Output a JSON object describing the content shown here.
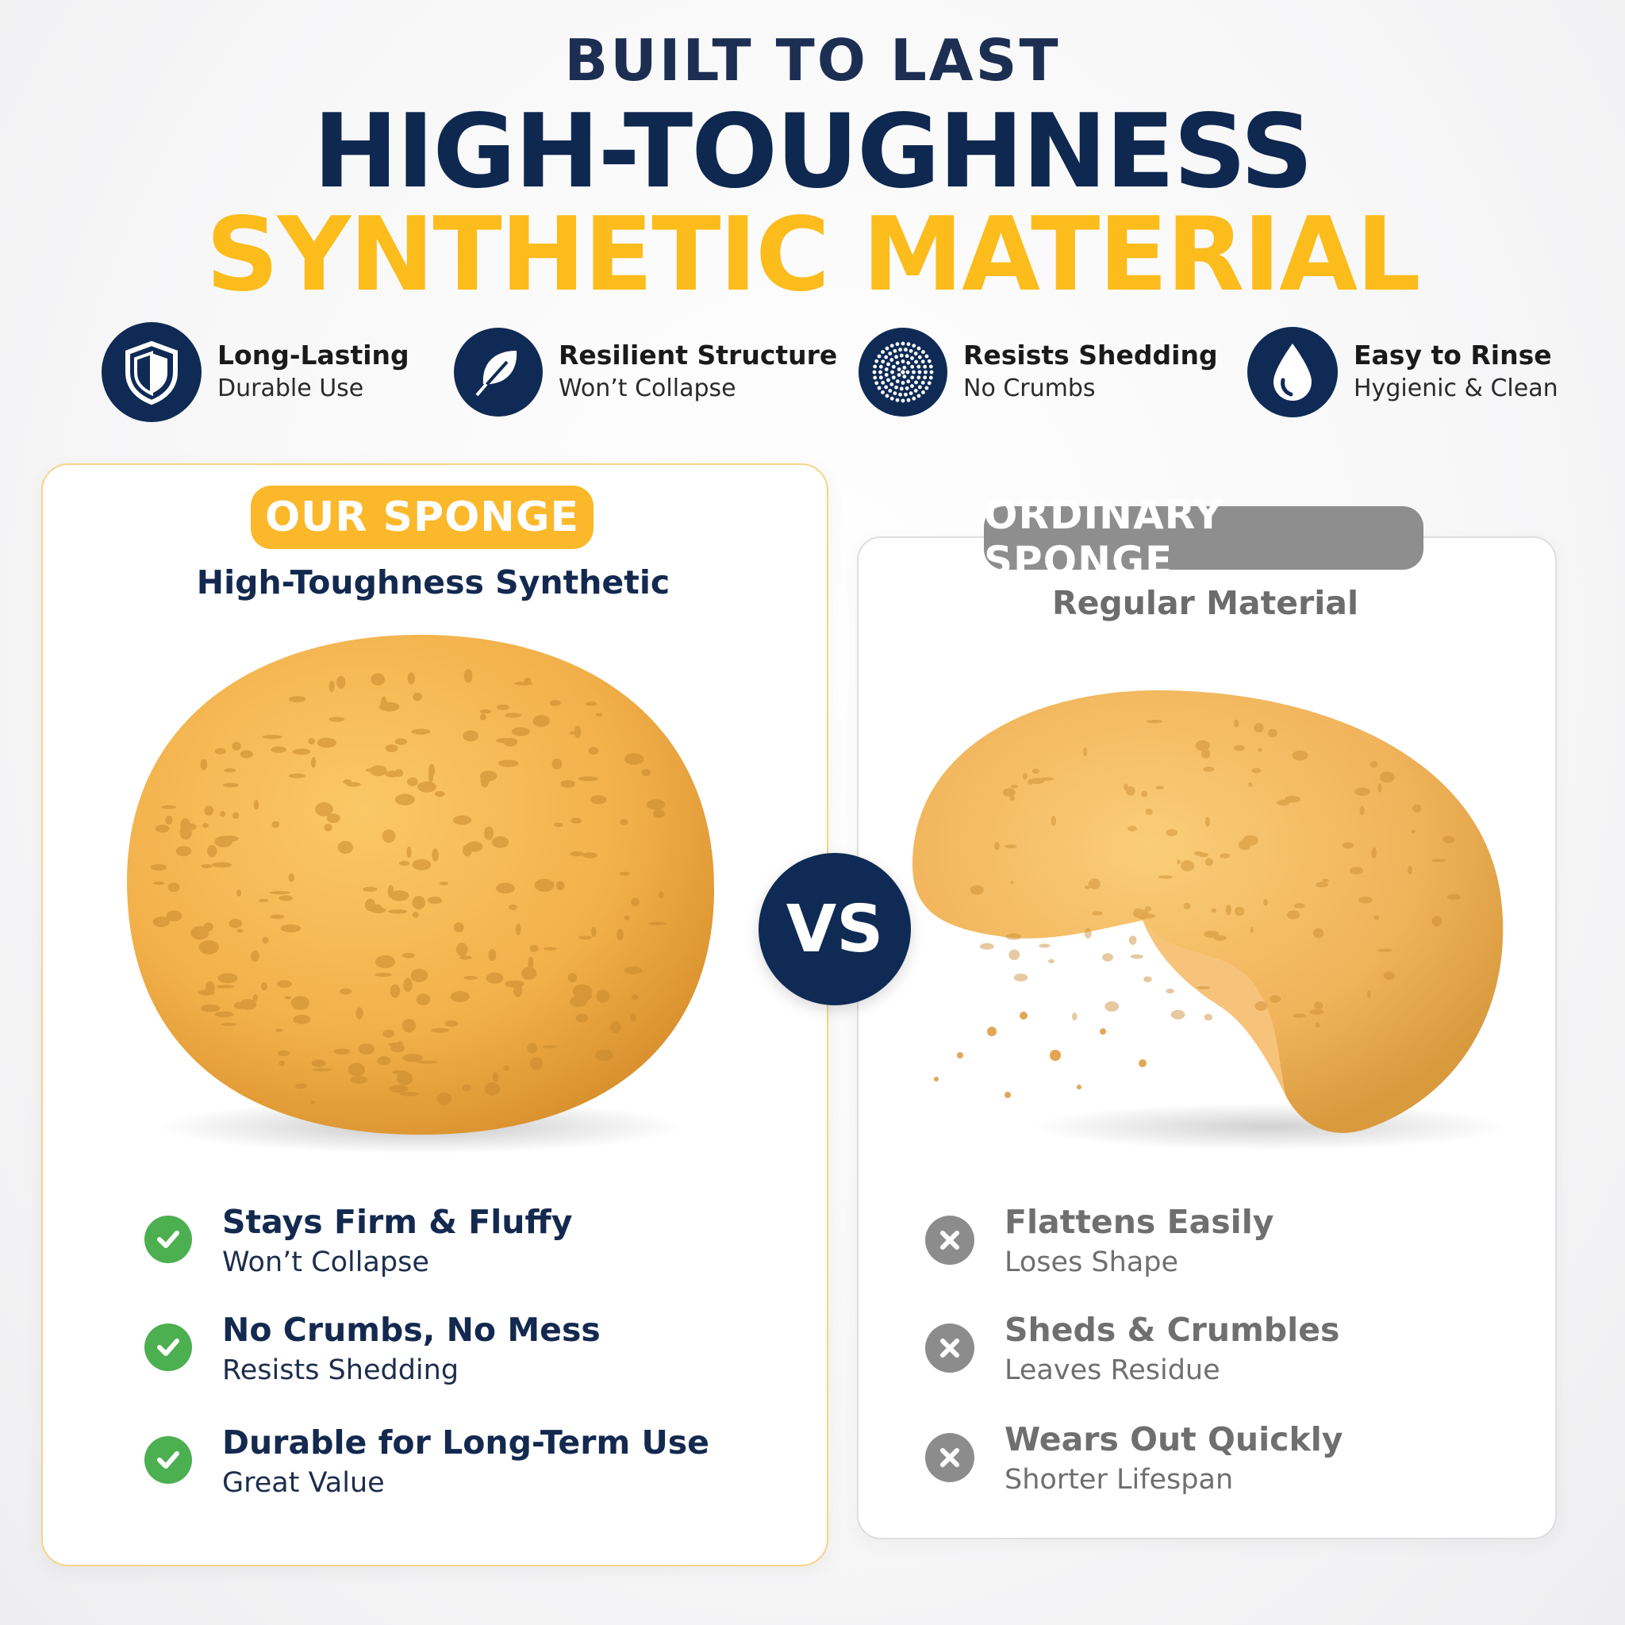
{
  "header": {
    "kicker": "BUILT TO LAST",
    "title_line1": "HIGH-TOUGHNESS",
    "title_line2": "SYNTHETIC MATERIAL"
  },
  "features": [
    {
      "icon": "shield-icon",
      "title": "Long-Lasting",
      "subtitle": "Durable Use"
    },
    {
      "icon": "leaf-icon",
      "title": "Resilient Structure",
      "subtitle": "Won’t Collapse"
    },
    {
      "icon": "dotted-circle-icon",
      "title": "Resists Shedding",
      "subtitle": "No Crumbs"
    },
    {
      "icon": "water-drop-icon",
      "title": "Easy to Rinse",
      "subtitle": "Hygienic & Clean"
    }
  ],
  "our": {
    "badge": "OUR SPONGE",
    "subtitle": "High-Toughness Synthetic",
    "points": [
      {
        "title": "Stays Firm & Fluffy",
        "subtitle": "Won’t Collapse"
      },
      {
        "title": "No Crumbs, No Mess",
        "subtitle": "Resists Shedding"
      },
      {
        "title": "Durable for Long-Term Use",
        "subtitle": "Great Value"
      }
    ]
  },
  "vs_label": "VS",
  "ordinary": {
    "badge": "ORDINARY SPONGE",
    "subtitle": "Regular Material",
    "points": [
      {
        "title": "Flattens Easily",
        "subtitle": "Loses Shape"
      },
      {
        "title": "Sheds & Crumbles",
        "subtitle": "Leaves Residue"
      },
      {
        "title": "Wears Out Quickly",
        "subtitle": "Shorter Lifespan"
      }
    ]
  },
  "colors": {
    "navy": "#0f2b55",
    "yellow": "#fbbc1c",
    "green": "#4caf50",
    "gray": "#8c8c8c"
  }
}
